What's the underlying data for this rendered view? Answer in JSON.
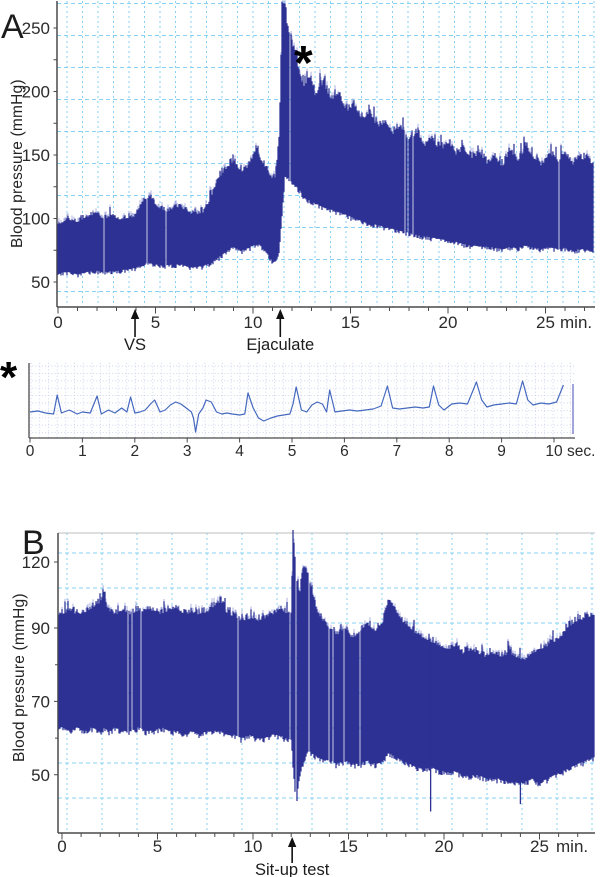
{
  "figure": {
    "description": "Two blood pressure recordings with an inset pulse-wave trace",
    "style": {
      "trace_color": "#2c3193",
      "trace_tip_color": "#9aa0d8",
      "inset_trace_color": "#4569be",
      "grid_color": "#7ed0f5",
      "inset_grid_color": "#c9d2ec",
      "axis_color": "#4a4a4a",
      "text_color": "#2b2b2b",
      "annotation_color": "#111111",
      "end_line_color": "#8a8ed2"
    }
  },
  "chart_data": [
    {
      "id": "panel_a",
      "type": "area",
      "panel_label": "A",
      "ylabel": "Blood pressure (mmHg)",
      "y_unit": "mmHg",
      "x_unit_suffix": "min.",
      "x_ticks": [
        0,
        5,
        10,
        15,
        20,
        25
      ],
      "y_ticks": [
        250,
        200,
        150,
        100,
        50
      ],
      "ylim": [
        30,
        275
      ],
      "peak_marker": "*",
      "annotations": [
        {
          "label": "VS",
          "t_min": 3.95
        },
        {
          "label": "Ejaculate",
          "t_min": 11.4
        }
      ],
      "series_envelope_min_sys_dia": [
        [
          0,
          95,
          57
        ],
        [
          0.5,
          99,
          58
        ],
        [
          1,
          97,
          56
        ],
        [
          1.5,
          101,
          58
        ],
        [
          2,
          104,
          59
        ],
        [
          2.3,
          99,
          58
        ],
        [
          2.7,
          102,
          59
        ],
        [
          3.1,
          99,
          59
        ],
        [
          3.5,
          100,
          60
        ],
        [
          3.9,
          101,
          61
        ],
        [
          4.3,
          112,
          63
        ],
        [
          4.7,
          117,
          66
        ],
        [
          5.1,
          109,
          64
        ],
        [
          5.5,
          105,
          63
        ],
        [
          5.9,
          107,
          64
        ],
        [
          6.3,
          109,
          64
        ],
        [
          6.7,
          104,
          62
        ],
        [
          7.1,
          103,
          62
        ],
        [
          7.5,
          105,
          63
        ],
        [
          7.8,
          115,
          65
        ],
        [
          8.2,
          130,
          69
        ],
        [
          8.6,
          138,
          74
        ],
        [
          9,
          145,
          78
        ],
        [
          9.4,
          136,
          75
        ],
        [
          9.8,
          141,
          77
        ],
        [
          10.2,
          153,
          81
        ],
        [
          10.5,
          143,
          77
        ],
        [
          10.8,
          136,
          71
        ],
        [
          11.05,
          128,
          66
        ],
        [
          11.2,
          135,
          67
        ],
        [
          11.35,
          165,
          75
        ],
        [
          11.5,
          272,
          105
        ],
        [
          11.65,
          262,
          135
        ],
        [
          11.8,
          248,
          133
        ],
        [
          12,
          234,
          128
        ],
        [
          12.3,
          220,
          124
        ],
        [
          12.6,
          202,
          118
        ],
        [
          12.9,
          212,
          114
        ],
        [
          13.2,
          196,
          112
        ],
        [
          13.6,
          206,
          109
        ],
        [
          14,
          193,
          107
        ],
        [
          14.4,
          198,
          105
        ],
        [
          14.8,
          184,
          103
        ],
        [
          15.2,
          189,
          100
        ],
        [
          15.6,
          177,
          98
        ],
        [
          16,
          183,
          96
        ],
        [
          16.4,
          171,
          95
        ],
        [
          16.8,
          176,
          93
        ],
        [
          17.2,
          166,
          92
        ],
        [
          17.6,
          171,
          90
        ],
        [
          18,
          161,
          89
        ],
        [
          18.4,
          167,
          87
        ],
        [
          18.8,
          157,
          86
        ],
        [
          19.2,
          162,
          85
        ],
        [
          19.6,
          153,
          84
        ],
        [
          20,
          159,
          83
        ],
        [
          20.4,
          149,
          82
        ],
        [
          20.8,
          155,
          80
        ],
        [
          21.2,
          146,
          79
        ],
        [
          21.6,
          151,
          78
        ],
        [
          22,
          143,
          78
        ],
        [
          22.4,
          148,
          77
        ],
        [
          22.8,
          140,
          76
        ],
        [
          23.2,
          153,
          78
        ],
        [
          23.6,
          145,
          77
        ],
        [
          24,
          156,
          79
        ],
        [
          24.4,
          147,
          77
        ],
        [
          24.8,
          141,
          76
        ],
        [
          25.2,
          151,
          78
        ],
        [
          25.6,
          144,
          76
        ],
        [
          26,
          149,
          77
        ],
        [
          26.4,
          142,
          75
        ],
        [
          26.8,
          147,
          76
        ],
        [
          27.4,
          143,
          75
        ]
      ]
    },
    {
      "id": "inset_pulse",
      "type": "line",
      "panel_label": "*",
      "x_unit_suffix": "sec.",
      "x_ticks": [
        0,
        1,
        2,
        3,
        4,
        5,
        6,
        7,
        8,
        9,
        10
      ],
      "note": "pulse waveform, no vertical scale shown; amplitude in arbitrary units 0-75",
      "points_sec_amp": [
        [
          0,
          26
        ],
        [
          0.15,
          27
        ],
        [
          0.3,
          25
        ],
        [
          0.45,
          24
        ],
        [
          0.52,
          43
        ],
        [
          0.6,
          25
        ],
        [
          0.75,
          28
        ],
        [
          0.9,
          24
        ],
        [
          1.0,
          26
        ],
        [
          1.15,
          25
        ],
        [
          1.28,
          42
        ],
        [
          1.36,
          24
        ],
        [
          1.5,
          28
        ],
        [
          1.62,
          25
        ],
        [
          1.75,
          30
        ],
        [
          1.85,
          26
        ],
        [
          1.92,
          41
        ],
        [
          2.0,
          25
        ],
        [
          2.1,
          26
        ],
        [
          2.2,
          28
        ],
        [
          2.3,
          34
        ],
        [
          2.38,
          38
        ],
        [
          2.48,
          26
        ],
        [
          2.58,
          28
        ],
        [
          2.68,
          33
        ],
        [
          2.78,
          36
        ],
        [
          2.88,
          34
        ],
        [
          2.98,
          30
        ],
        [
          3.08,
          26
        ],
        [
          3.12,
          20
        ],
        [
          3.16,
          6
        ],
        [
          3.22,
          24
        ],
        [
          3.3,
          30
        ],
        [
          3.36,
          38
        ],
        [
          3.46,
          36
        ],
        [
          3.56,
          26
        ],
        [
          3.66,
          24
        ],
        [
          3.76,
          25
        ],
        [
          3.86,
          24
        ],
        [
          4.0,
          23
        ],
        [
          4.1,
          24
        ],
        [
          4.16,
          45
        ],
        [
          4.26,
          30
        ],
        [
          4.36,
          20
        ],
        [
          4.46,
          17
        ],
        [
          4.6,
          20
        ],
        [
          4.72,
          22
        ],
        [
          4.84,
          23
        ],
        [
          4.96,
          24
        ],
        [
          5.02,
          34
        ],
        [
          5.08,
          51
        ],
        [
          5.18,
          28
        ],
        [
          5.28,
          26
        ],
        [
          5.38,
          33
        ],
        [
          5.48,
          36
        ],
        [
          5.58,
          34
        ],
        [
          5.66,
          26
        ],
        [
          5.72,
          48
        ],
        [
          5.82,
          26
        ],
        [
          5.95,
          27
        ],
        [
          6.1,
          28
        ],
        [
          6.25,
          27
        ],
        [
          6.4,
          28
        ],
        [
          6.55,
          29
        ],
        [
          6.7,
          32
        ],
        [
          6.82,
          52
        ],
        [
          6.92,
          30
        ],
        [
          7.05,
          29
        ],
        [
          7.2,
          30
        ],
        [
          7.35,
          31
        ],
        [
          7.5,
          30
        ],
        [
          7.62,
          31
        ],
        [
          7.7,
          52
        ],
        [
          7.8,
          33
        ],
        [
          7.9,
          28
        ],
        [
          8.05,
          34
        ],
        [
          8.2,
          35
        ],
        [
          8.35,
          34
        ],
        [
          8.52,
          56
        ],
        [
          8.62,
          38
        ],
        [
          8.72,
          31
        ],
        [
          8.85,
          33
        ],
        [
          9.0,
          34
        ],
        [
          9.15,
          35
        ],
        [
          9.28,
          34
        ],
        [
          9.4,
          57
        ],
        [
          9.5,
          38
        ],
        [
          9.6,
          33
        ],
        [
          9.75,
          35
        ],
        [
          9.9,
          34
        ],
        [
          10.05,
          36
        ],
        [
          10.18,
          53
        ]
      ]
    },
    {
      "id": "panel_b",
      "type": "area",
      "panel_label": "B",
      "ylabel": "Blood pressure (mmHg)",
      "y_unit": "mmHg",
      "x_unit_suffix": "min.",
      "x_ticks": [
        0,
        5,
        10,
        15,
        20,
        25
      ],
      "y_ticks": [
        120,
        90,
        70,
        50
      ],
      "ylim": [
        34,
        133
      ],
      "annotations": [
        {
          "label": "Sit-up test",
          "t_min": 12.05
        }
      ],
      "down_spikes": [
        {
          "t_min": 19.3,
          "to_mmHg": 40
        },
        {
          "t_min": 24.0,
          "to_mmHg": 42
        }
      ],
      "series_envelope_min_sys_dia": [
        [
          0,
          96,
          63
        ],
        [
          0.4,
          98,
          62
        ],
        [
          0.8,
          96,
          63
        ],
        [
          1.2,
          97,
          62
        ],
        [
          1.6,
          99,
          63
        ],
        [
          2,
          101,
          62
        ],
        [
          2.2,
          106,
          63
        ],
        [
          2.4,
          97,
          62
        ],
        [
          2.8,
          96,
          63
        ],
        [
          3.2,
          98,
          62
        ],
        [
          3.6,
          96,
          62
        ],
        [
          4,
          98,
          63
        ],
        [
          4.4,
          97,
          62
        ],
        [
          4.8,
          98,
          62
        ],
        [
          5.2,
          96,
          63
        ],
        [
          5.6,
          98,
          62
        ],
        [
          6,
          99,
          62
        ],
        [
          6.4,
          96,
          61
        ],
        [
          6.8,
          97,
          62
        ],
        [
          7.2,
          96,
          61
        ],
        [
          7.6,
          97,
          62
        ],
        [
          8,
          100,
          62
        ],
        [
          8.3,
          102,
          62
        ],
        [
          8.6,
          97,
          61
        ],
        [
          9,
          95,
          61
        ],
        [
          9.4,
          93,
          60
        ],
        [
          9.8,
          94,
          61
        ],
        [
          10.2,
          93,
          60
        ],
        [
          10.6,
          94,
          60
        ],
        [
          11,
          96,
          61
        ],
        [
          11.4,
          98,
          61
        ],
        [
          11.7,
          96,
          60
        ],
        [
          12,
          97,
          60
        ],
        [
          12.1,
          136,
          52
        ],
        [
          12.25,
          112,
          42
        ],
        [
          12.45,
          106,
          50
        ],
        [
          12.65,
          118,
          54
        ],
        [
          12.85,
          114,
          57
        ],
        [
          13.05,
          108,
          56
        ],
        [
          13.35,
          98,
          55
        ],
        [
          13.7,
          92,
          54
        ],
        [
          14,
          90,
          54
        ],
        [
          14.4,
          88,
          53
        ],
        [
          14.8,
          90,
          54
        ],
        [
          15.2,
          87,
          53
        ],
        [
          15.6,
          89,
          53
        ],
        [
          16,
          91,
          54
        ],
        [
          16.4,
          89,
          53
        ],
        [
          16.8,
          92,
          54
        ],
        [
          17.1,
          103,
          56
        ],
        [
          17.4,
          99,
          55
        ],
        [
          17.8,
          93,
          54
        ],
        [
          18.2,
          90,
          53
        ],
        [
          18.6,
          88,
          52
        ],
        [
          19,
          87,
          52
        ],
        [
          19.4,
          86,
          52
        ],
        [
          19.8,
          85,
          51
        ],
        [
          20.2,
          84,
          51
        ],
        [
          20.6,
          85,
          51
        ],
        [
          21,
          83,
          50
        ],
        [
          21.4,
          84,
          50
        ],
        [
          21.8,
          83,
          50
        ],
        [
          22.2,
          82,
          49
        ],
        [
          22.6,
          83,
          49
        ],
        [
          23,
          82,
          49
        ],
        [
          23.4,
          83,
          48
        ],
        [
          23.8,
          82,
          48
        ],
        [
          24.2,
          81,
          48
        ],
        [
          24.6,
          83,
          49
        ],
        [
          25,
          84,
          48
        ],
        [
          25.4,
          85,
          49
        ],
        [
          25.8,
          86,
          50
        ],
        [
          26.2,
          88,
          51
        ],
        [
          26.6,
          91,
          52
        ],
        [
          27,
          93,
          53
        ],
        [
          27.9,
          96,
          55
        ]
      ]
    }
  ]
}
